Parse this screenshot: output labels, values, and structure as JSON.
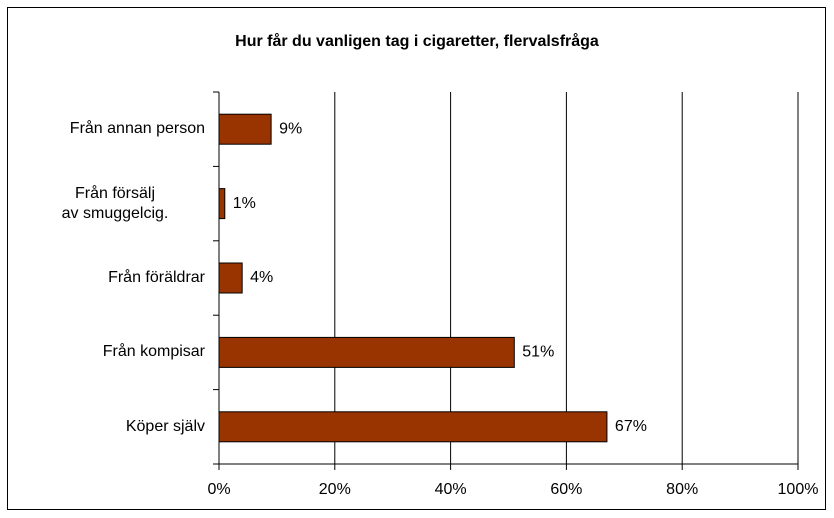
{
  "chart_data": {
    "type": "bar",
    "orientation": "horizontal",
    "title": "Hur får du vanligen tag i cigaretter, flervalsfråga",
    "categories": [
      "Från annan person",
      "Från försälj av smuggelcig.",
      "Från föräldrar",
      "Från kompisar",
      "Köper själv"
    ],
    "values": [
      9,
      1,
      4,
      51,
      67
    ],
    "value_labels": [
      "9%",
      "1%",
      "4%",
      "51%",
      "67%"
    ],
    "color": "#993300",
    "xlim": [
      0,
      100
    ],
    "xticks": [
      {
        "value": 0,
        "label": "0%"
      },
      {
        "value": 20,
        "label": "20%"
      },
      {
        "value": 40,
        "label": "40%"
      },
      {
        "value": 60,
        "label": "60%"
      },
      {
        "value": 80,
        "label": "80%"
      },
      {
        "value": 100,
        "label": "100%"
      }
    ],
    "grid": true
  }
}
